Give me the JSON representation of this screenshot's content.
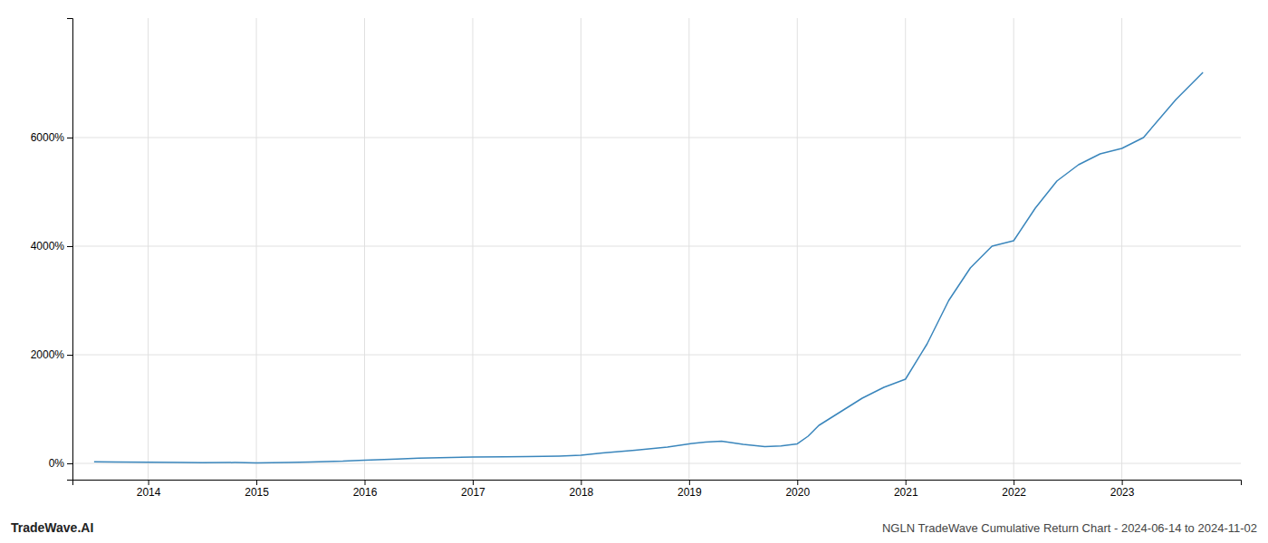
{
  "chart_data": {
    "type": "line",
    "title": "NGLN TradeWave Cumulative Return Chart - 2024-06-14 to 2024-11-02",
    "annotations": [
      "TradeWave.AI"
    ],
    "x": [
      2013.5,
      2013.7,
      2014.0,
      2014.3,
      2014.5,
      2014.8,
      2015.0,
      2015.3,
      2015.5,
      2015.8,
      2016.0,
      2016.3,
      2016.5,
      2016.8,
      2017.0,
      2017.3,
      2017.5,
      2017.8,
      2018.0,
      2018.2,
      2018.5,
      2018.8,
      2019.0,
      2019.15,
      2019.3,
      2019.5,
      2019.7,
      2019.85,
      2020.0,
      2020.1,
      2020.2,
      2020.4,
      2020.6,
      2020.8,
      2021.0,
      2021.2,
      2021.4,
      2021.6,
      2021.8,
      2022.0,
      2022.2,
      2022.4,
      2022.6,
      2022.8,
      2023.0,
      2023.2,
      2023.5,
      2023.75
    ],
    "values": [
      30,
      25,
      20,
      15,
      12,
      15,
      10,
      15,
      25,
      40,
      60,
      80,
      95,
      110,
      115,
      120,
      125,
      135,
      150,
      190,
      240,
      300,
      360,
      390,
      410,
      350,
      310,
      320,
      360,
      500,
      700,
      950,
      1200,
      1400,
      1550,
      2200,
      3000,
      3600,
      4000,
      4100,
      4700,
      5200,
      5500,
      5700,
      5800,
      6000,
      6700,
      7200
    ],
    "color": "#3a86bc",
    "xlim": [
      2013.3,
      2024.1
    ],
    "ylim": [
      -300,
      8200
    ],
    "xticks": [
      2014,
      2015,
      2016,
      2017,
      2018,
      2019,
      2020,
      2021,
      2022,
      2023
    ],
    "yticks": [
      {
        "value": 0,
        "label": "0%"
      },
      {
        "value": 2000,
        "label": "2000%"
      },
      {
        "value": 4000,
        "label": "4000%"
      },
      {
        "value": 6000,
        "label": "6000%"
      }
    ],
    "grid": true
  }
}
